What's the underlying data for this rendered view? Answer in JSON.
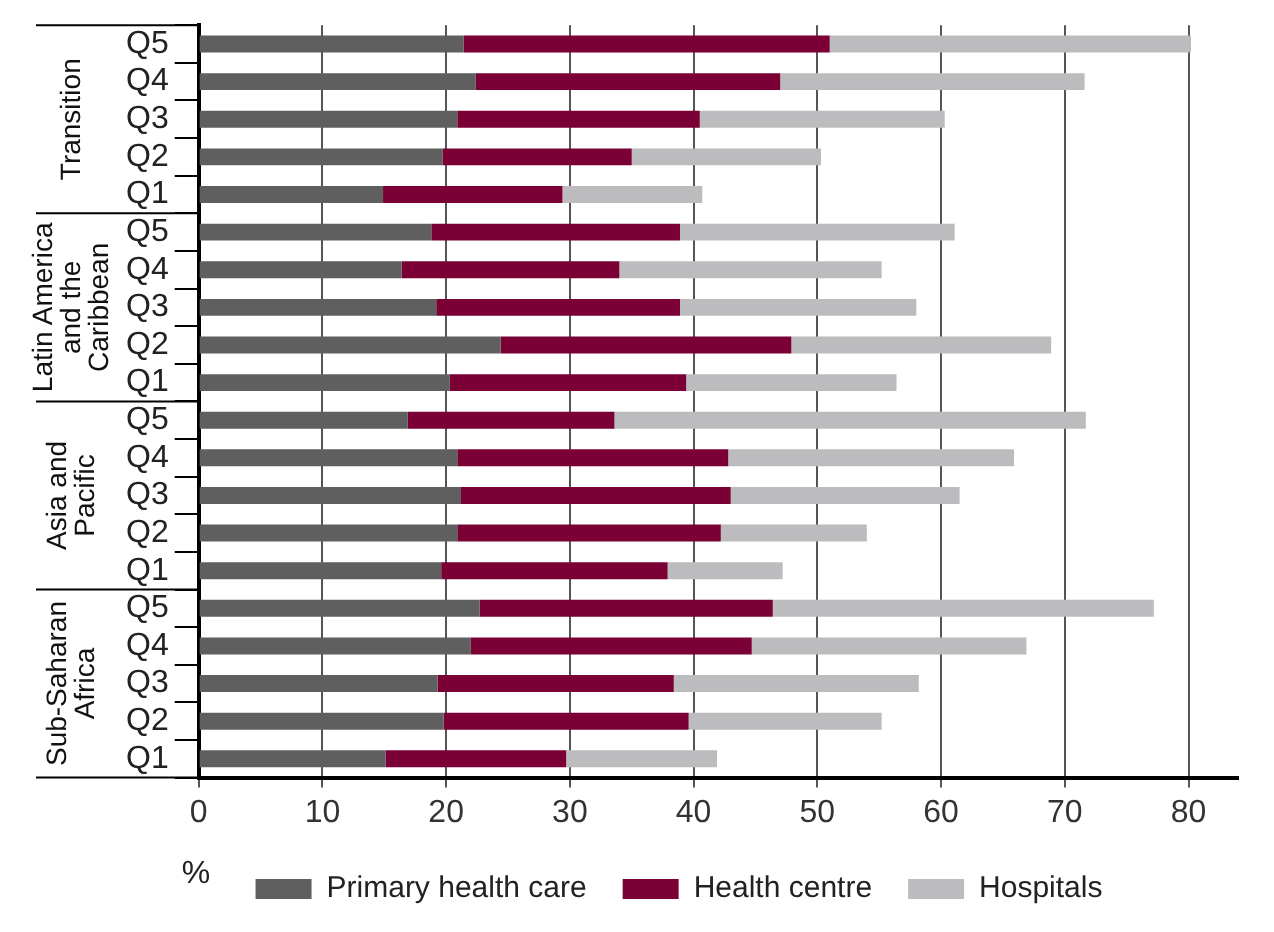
{
  "chart_data": {
    "type": "bar",
    "orientation": "horizontal",
    "stacked": true,
    "xlabel": "%",
    "categories": [
      "Q5",
      "Q4",
      "Q3",
      "Q2",
      "Q1",
      "Q5",
      "Q4",
      "Q3",
      "Q2",
      "Q1",
      "Q5",
      "Q4",
      "Q3",
      "Q2",
      "Q1",
      "Q5",
      "Q4",
      "Q3",
      "Q2",
      "Q1"
    ],
    "annotations": [
      "Transition",
      "Latin America and the Caribbean",
      "Asia and Pacific",
      "Sub-Saharan Africa"
    ],
    "series": [
      {
        "name": "Primary health care",
        "color": "#5f5f5f",
        "values": [
          21.4,
          22.4,
          20.9,
          19.7,
          14.9,
          18.8,
          16.4,
          19.2,
          24.4,
          20.3,
          16.9,
          20.9,
          21.2,
          20.9,
          19.6,
          22.7,
          22.0,
          19.3,
          19.8,
          15.1
        ]
      },
      {
        "name": "Health centre",
        "color": "#7a0036",
        "values": [
          29.6,
          24.6,
          19.6,
          15.3,
          14.5,
          20.1,
          17.6,
          19.7,
          23.5,
          19.1,
          16.7,
          21.9,
          21.8,
          21.3,
          18.3,
          23.7,
          22.7,
          19.1,
          19.8,
          14.6
        ]
      },
      {
        "name": "Hospitals",
        "color": "#bcbcbe",
        "values": [
          29.2,
          24.6,
          19.8,
          15.3,
          11.3,
          22.2,
          21.2,
          19.1,
          21.0,
          17.0,
          38.1,
          23.1,
          18.5,
          11.8,
          9.3,
          30.8,
          22.2,
          19.8,
          15.6,
          12.2
        ]
      }
    ],
    "xlim": [
      0,
      84
    ],
    "xticks": [
      0,
      10,
      20,
      30,
      40,
      50,
      60,
      70,
      80
    ],
    "grid": "x",
    "legend": "bottom"
  }
}
